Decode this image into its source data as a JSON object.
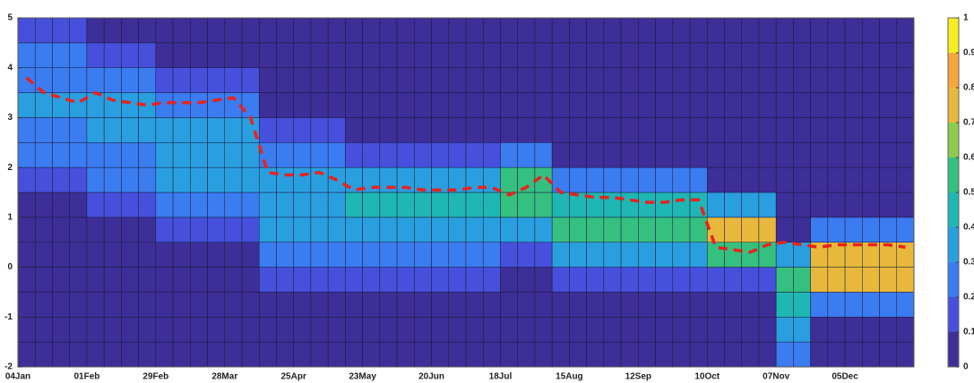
{
  "chart_data": {
    "type": "heatmap",
    "categories": [
      "04Jan",
      null,
      null,
      null,
      "01Feb",
      null,
      null,
      null,
      "29Feb",
      null,
      null,
      null,
      "28Mar",
      null,
      null,
      null,
      "25Apr",
      null,
      null,
      null,
      "23May",
      null,
      null,
      null,
      "20Jun",
      null,
      null,
      null,
      "18Jul",
      null,
      null,
      null,
      "15Aug",
      null,
      null,
      null,
      "12Sep",
      null,
      null,
      null,
      "10Oct",
      null,
      null,
      null,
      "07Nov",
      null,
      null,
      null,
      "05Dec",
      null,
      null,
      null
    ],
    "ylim": [
      -2,
      5
    ],
    "yticks": [
      -2,
      -1,
      0,
      1,
      2,
      3,
      4,
      5
    ],
    "y_bins": [
      -2,
      -1.5,
      -1,
      -0.5,
      0,
      0.5,
      1,
      1.5,
      2,
      2.5,
      3,
      3.5,
      4,
      4.5,
      5
    ],
    "clim": [
      0,
      1
    ],
    "cticks": [
      0,
      0.1,
      0.2,
      0.3,
      0.4,
      0.5,
      0.6,
      0.7,
      0.8,
      0.9,
      1
    ],
    "colormap": [
      "#3e2e98",
      "#4650dc",
      "#3b7cf0",
      "#2a9fe0",
      "#1fb7b3",
      "#35c080",
      "#8ccc4e",
      "#e8b83c",
      "#f8a83a",
      "#f5ef22"
    ],
    "z": [
      [
        0,
        0,
        0,
        0,
        0,
        0,
        0,
        0.1,
        0.2,
        0.2,
        0.3,
        0.2,
        0.2,
        0.1
      ],
      [
        0,
        0,
        0,
        0,
        0,
        0,
        0,
        0.1,
        0.2,
        0.2,
        0.3,
        0.2,
        0.2,
        0.1
      ],
      [
        0,
        0,
        0,
        0,
        0,
        0,
        0,
        0.1,
        0.2,
        0.2,
        0.3,
        0.2,
        0.2,
        0.1
      ],
      [
        0,
        0,
        0,
        0,
        0,
        0,
        0,
        0.1,
        0.2,
        0.2,
        0.3,
        0.2,
        0.2,
        0.1
      ],
      [
        0,
        0,
        0,
        0,
        0,
        0,
        0.1,
        0.2,
        0.2,
        0.3,
        0.3,
        0.2,
        0.1,
        0
      ],
      [
        0,
        0,
        0,
        0,
        0,
        0,
        0.1,
        0.2,
        0.2,
        0.3,
        0.3,
        0.2,
        0.1,
        0
      ],
      [
        0,
        0,
        0,
        0,
        0,
        0,
        0.1,
        0.2,
        0.2,
        0.3,
        0.3,
        0.2,
        0.1,
        0
      ],
      [
        0,
        0,
        0,
        0,
        0,
        0,
        0.1,
        0.2,
        0.2,
        0.3,
        0.3,
        0.2,
        0.1,
        0
      ],
      [
        0,
        0,
        0,
        0,
        0,
        0.1,
        0.2,
        0.3,
        0.3,
        0.3,
        0.2,
        0.1,
        0,
        0
      ],
      [
        0,
        0,
        0,
        0,
        0,
        0.1,
        0.2,
        0.3,
        0.3,
        0.3,
        0.2,
        0.1,
        0,
        0
      ],
      [
        0,
        0,
        0,
        0,
        0,
        0.1,
        0.2,
        0.3,
        0.3,
        0.3,
        0.2,
        0.1,
        0,
        0
      ],
      [
        0,
        0,
        0,
        0,
        0,
        0.1,
        0.2,
        0.3,
        0.3,
        0.3,
        0.2,
        0.1,
        0,
        0
      ],
      [
        0,
        0,
        0,
        0,
        0,
        0.1,
        0.2,
        0.3,
        0.3,
        0.3,
        0.2,
        0.1,
        0,
        0
      ],
      [
        0,
        0,
        0,
        0,
        0,
        0.1,
        0.2,
        0.3,
        0.3,
        0.3,
        0.2,
        0.1,
        0,
        0
      ],
      [
        0,
        0,
        0,
        0.1,
        0.2,
        0.3,
        0.3,
        0.3,
        0.2,
        0.1,
        0,
        0,
        0,
        0
      ],
      [
        0,
        0,
        0,
        0.1,
        0.2,
        0.3,
        0.3,
        0.3,
        0.2,
        0.1,
        0,
        0,
        0,
        0
      ],
      [
        0,
        0,
        0,
        0.1,
        0.2,
        0.3,
        0.3,
        0.3,
        0.2,
        0.1,
        0,
        0,
        0,
        0
      ],
      [
        0,
        0,
        0,
        0.1,
        0.2,
        0.3,
        0.3,
        0.3,
        0.2,
        0.1,
        0,
        0,
        0,
        0
      ],
      [
        0,
        0,
        0,
        0.1,
        0.2,
        0.3,
        0.3,
        0.3,
        0.2,
        0.1,
        0,
        0,
        0,
        0
      ],
      [
        0,
        0,
        0,
        0.1,
        0.2,
        0.3,
        0.4,
        0.3,
        0.1,
        0,
        0,
        0,
        0,
        0
      ],
      [
        0,
        0,
        0,
        0.1,
        0.2,
        0.3,
        0.4,
        0.3,
        0.1,
        0,
        0,
        0,
        0,
        0
      ],
      [
        0,
        0,
        0,
        0.1,
        0.2,
        0.3,
        0.4,
        0.3,
        0.1,
        0,
        0,
        0,
        0,
        0
      ],
      [
        0,
        0,
        0,
        0.1,
        0.2,
        0.3,
        0.4,
        0.3,
        0.1,
        0,
        0,
        0,
        0,
        0
      ],
      [
        0,
        0,
        0,
        0.1,
        0.2,
        0.3,
        0.4,
        0.3,
        0.1,
        0,
        0,
        0,
        0,
        0
      ],
      [
        0,
        0,
        0,
        0.1,
        0.2,
        0.3,
        0.4,
        0.3,
        0.1,
        0,
        0,
        0,
        0,
        0
      ],
      [
        0,
        0,
        0,
        0.1,
        0.2,
        0.3,
        0.4,
        0.3,
        0.1,
        0,
        0,
        0,
        0,
        0
      ],
      [
        0,
        0,
        0,
        0.1,
        0.2,
        0.3,
        0.4,
        0.3,
        0.1,
        0,
        0,
        0,
        0,
        0
      ],
      [
        0,
        0,
        0,
        0.1,
        0.2,
        0.3,
        0.4,
        0.3,
        0.1,
        0,
        0,
        0,
        0,
        0
      ],
      [
        0,
        0,
        0,
        0,
        0.1,
        0.3,
        0.5,
        0.5,
        0.2,
        0,
        0,
        0,
        0,
        0
      ],
      [
        0,
        0,
        0,
        0,
        0.1,
        0.3,
        0.5,
        0.5,
        0.2,
        0,
        0,
        0,
        0,
        0
      ],
      [
        0,
        0,
        0,
        0,
        0.1,
        0.3,
        0.5,
        0.5,
        0.2,
        0,
        0,
        0,
        0,
        0
      ],
      [
        0,
        0,
        0,
        0.1,
        0.3,
        0.5,
        0.4,
        0.2,
        0,
        0,
        0,
        0,
        0,
        0
      ],
      [
        0,
        0,
        0,
        0.1,
        0.3,
        0.5,
        0.4,
        0.2,
        0,
        0,
        0,
        0,
        0,
        0
      ],
      [
        0,
        0,
        0,
        0.1,
        0.3,
        0.5,
        0.4,
        0.2,
        0,
        0,
        0,
        0,
        0,
        0
      ],
      [
        0,
        0,
        0,
        0.1,
        0.3,
        0.5,
        0.4,
        0.2,
        0,
        0,
        0,
        0,
        0,
        0
      ],
      [
        0,
        0,
        0,
        0.1,
        0.3,
        0.5,
        0.4,
        0.2,
        0,
        0,
        0,
        0,
        0,
        0
      ],
      [
        0,
        0,
        0,
        0.1,
        0.3,
        0.5,
        0.4,
        0.2,
        0,
        0,
        0,
        0,
        0,
        0
      ],
      [
        0,
        0,
        0,
        0.1,
        0.3,
        0.5,
        0.4,
        0.2,
        0,
        0,
        0,
        0,
        0,
        0
      ],
      [
        0,
        0,
        0,
        0.1,
        0.3,
        0.5,
        0.4,
        0.2,
        0,
        0,
        0,
        0,
        0,
        0
      ],
      [
        0,
        0,
        0,
        0.1,
        0.3,
        0.5,
        0.4,
        0.2,
        0,
        0,
        0,
        0,
        0,
        0
      ],
      [
        0,
        0,
        0,
        0.1,
        0.5,
        0.7,
        0.3,
        0,
        0,
        0,
        0,
        0,
        0,
        0
      ],
      [
        0,
        0,
        0,
        0.1,
        0.5,
        0.7,
        0.3,
        0,
        0,
        0,
        0,
        0,
        0,
        0
      ],
      [
        0,
        0,
        0,
        0.1,
        0.5,
        0.7,
        0.3,
        0,
        0,
        0,
        0,
        0,
        0,
        0
      ],
      [
        0,
        0,
        0,
        0.1,
        0.5,
        0.7,
        0.3,
        0,
        0,
        0,
        0,
        0,
        0,
        0
      ],
      [
        0.2,
        0.3,
        0.4,
        0.5,
        0.3,
        0,
        0,
        0,
        0,
        0,
        0,
        0,
        0,
        0
      ],
      [
        0.2,
        0.3,
        0.4,
        0.5,
        0.3,
        0,
        0,
        0,
        0,
        0,
        0,
        0,
        0,
        0
      ],
      [
        0,
        0,
        0.2,
        0.7,
        0.7,
        0.2,
        0,
        0,
        0,
        0,
        0,
        0,
        0,
        0
      ],
      [
        0,
        0,
        0.2,
        0.7,
        0.7,
        0.2,
        0,
        0,
        0,
        0,
        0,
        0,
        0,
        0
      ],
      [
        0,
        0,
        0.2,
        0.7,
        0.7,
        0.2,
        0,
        0,
        0,
        0,
        0,
        0,
        0,
        0
      ],
      [
        0,
        0,
        0.2,
        0.7,
        0.7,
        0.2,
        0,
        0,
        0,
        0,
        0,
        0,
        0,
        0
      ],
      [
        0,
        0,
        0.2,
        0.7,
        0.7,
        0.2,
        0,
        0,
        0,
        0,
        0,
        0,
        0,
        0
      ],
      [
        0,
        0,
        0.2,
        0.7,
        0.7,
        0.2,
        0,
        0,
        0,
        0,
        0,
        0,
        0,
        0
      ]
    ],
    "series": [
      {
        "color": "#e8221e",
        "values": [
          3.8,
          3.5,
          3.4,
          3.3,
          3.5,
          3.35,
          3.3,
          3.25,
          3.3,
          3.3,
          3.3,
          3.35,
          3.4,
          3.0,
          1.9,
          1.85,
          1.85,
          1.9,
          1.75,
          1.55,
          1.6,
          1.6,
          1.6,
          1.55,
          1.55,
          1.55,
          1.6,
          1.6,
          1.45,
          1.6,
          1.85,
          1.5,
          1.45,
          1.4,
          1.4,
          1.35,
          1.3,
          1.3,
          1.35,
          1.35,
          0.4,
          0.35,
          0.3,
          0.45,
          0.5,
          0.45,
          0.4,
          0.45,
          0.45,
          0.45,
          0.45,
          0.4
        ]
      }
    ]
  }
}
